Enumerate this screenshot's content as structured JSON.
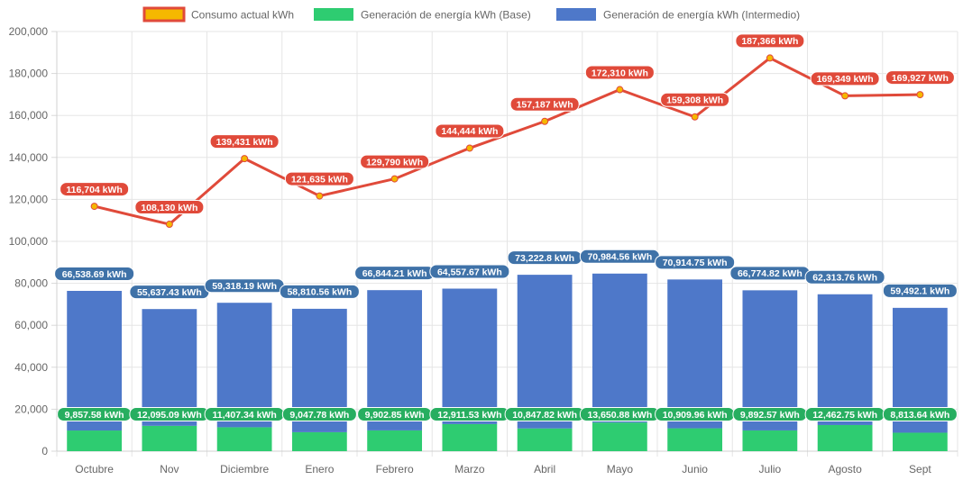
{
  "chart_data": {
    "type": "bar",
    "categories": [
      "Octubre",
      "Nov",
      "Diciembre",
      "Enero",
      "Febrero",
      "Marzo",
      "Abril",
      "Mayo",
      "Junio",
      "Julio",
      "Agosto",
      "Sept"
    ],
    "ylim": [
      0,
      200000
    ],
    "yticks": [
      0,
      20000,
      40000,
      60000,
      80000,
      100000,
      120000,
      140000,
      160000,
      180000,
      200000
    ],
    "ytick_labels": [
      "0",
      "20,000",
      "40,000",
      "60,000",
      "80,000",
      "100,000",
      "120,000",
      "140,000",
      "160,000",
      "180,000",
      "200,000"
    ],
    "grid": true,
    "legend_position": "top",
    "series": [
      {
        "name": "Consumo actual kWh",
        "kind": "line",
        "color": "#e04a3a",
        "marker_color": "#f5b800",
        "values": [
          116704,
          108130,
          139431,
          121635,
          129790,
          144444,
          157187,
          172310,
          159308,
          187366,
          169349,
          169927
        ],
        "labels": [
          "116,704 kWh",
          "108,130 kWh",
          "139,431 kWh",
          "121,635 kWh",
          "129,790 kWh",
          "144,444 kWh",
          "157,187 kWh",
          "172,310 kWh",
          "159,308 kWh",
          "187,366 kWh",
          "169,349 kWh",
          "169,927 kWh"
        ]
      },
      {
        "name": "Generación de energía kWh (Base)",
        "kind": "bar",
        "color": "#2ecc71",
        "values": [
          9857.58,
          12095.09,
          11407.34,
          9047.78,
          9902.85,
          12911.53,
          10847.82,
          13650.88,
          10909.96,
          9892.57,
          12462.75,
          8813.64
        ],
        "labels": [
          "9,857.58 kWh",
          "12,095.09 kWh",
          "11,407.34 kWh",
          "9,047.78 kWh",
          "9,902.85 kWh",
          "12,911.53 kWh",
          "10,847.82 kWh",
          "13,650.88 kWh",
          "10,909.96 kWh",
          "9,892.57 kWh",
          "12,462.75 kWh",
          "8,813.64 kWh"
        ]
      },
      {
        "name": "Generación de energía kWh (Intermedio)",
        "kind": "bar",
        "color": "#4e78c9",
        "values": [
          66538.69,
          55637.43,
          59318.19,
          58810.56,
          66844.21,
          64557.67,
          73222.8,
          70984.56,
          70914.75,
          66774.82,
          62313.76,
          59492.1
        ],
        "labels": [
          "66,538.69 kWh",
          "55,637.43 kWh",
          "59,318.19 kWh",
          "58,810.56 kWh",
          "66,844.21 kWh",
          "64,557.67 kWh",
          "73,222.8 kWh",
          "70,984.56 kWh",
          "70,914.75 kWh",
          "66,774.82 kWh",
          "62,313.76 kWh",
          "59,492.1 kWh"
        ]
      }
    ]
  }
}
